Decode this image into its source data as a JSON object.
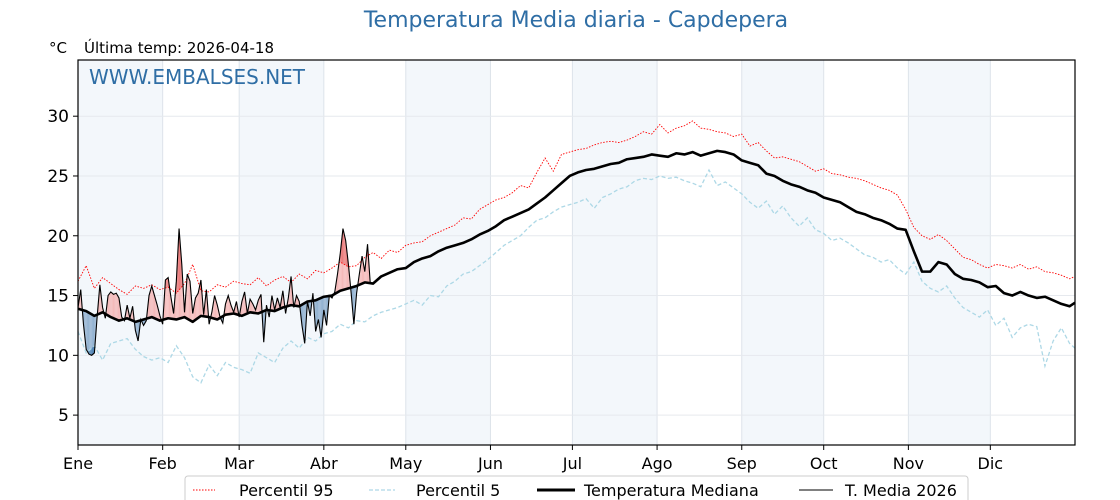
{
  "chart_data": {
    "type": "line",
    "title": "Temperatura Media diaria - Capdepera",
    "subtitle": "Última temp: 2026-04-18",
    "unit_label": "°C",
    "watermark": "WWW.EMBALSES.NET",
    "xlabel": "",
    "ylabel": "°C",
    "xlim_day": [
      1,
      366
    ],
    "ylim": [
      2.5,
      34.7
    ],
    "yticks": [
      5,
      10,
      15,
      20,
      25,
      30
    ],
    "xticks": [
      {
        "label": "Ene",
        "day": 1
      },
      {
        "label": "Feb",
        "day": 32
      },
      {
        "label": "Mar",
        "day": 60
      },
      {
        "label": "Abr",
        "day": 91
      },
      {
        "label": "May",
        "day": 121
      },
      {
        "label": "Jun",
        "day": 152
      },
      {
        "label": "Jul",
        "day": 182
      },
      {
        "label": "Ago",
        "day": 213
      },
      {
        "label": "Sep",
        "day": 244
      },
      {
        "label": "Oct",
        "day": 274
      },
      {
        "label": "Nov",
        "day": 305
      },
      {
        "label": "Dic",
        "day": 335
      }
    ],
    "shaded_months": [
      "Ene",
      "Mar",
      "May",
      "Jul",
      "Sep",
      "Nov"
    ],
    "grid": true,
    "legend_position": "bottom-center",
    "series": [
      {
        "name": "Percentil 95",
        "color": "#ff0000",
        "style": "dotted",
        "x": [
          1,
          4,
          7,
          10,
          13,
          16,
          19,
          22,
          25,
          28,
          31,
          34,
          37,
          40,
          43,
          46,
          49,
          52,
          55,
          58,
          61,
          64,
          67,
          70,
          73,
          76,
          79,
          82,
          85,
          88,
          91,
          94,
          97,
          100,
          103,
          106,
          109,
          112,
          115,
          118,
          121,
          124,
          127,
          130,
          133,
          136,
          139,
          142,
          145,
          148,
          151,
          154,
          157,
          160,
          163,
          166,
          169,
          172,
          175,
          178,
          181,
          184,
          187,
          190,
          193,
          196,
          199,
          202,
          205,
          208,
          211,
          214,
          217,
          220,
          223,
          226,
          229,
          232,
          235,
          238,
          241,
          244,
          247,
          250,
          253,
          256,
          259,
          262,
          265,
          268,
          271,
          274,
          277,
          280,
          283,
          286,
          289,
          292,
          295,
          298,
          301,
          304,
          307,
          310,
          313,
          316,
          319,
          322,
          325,
          328,
          331,
          334,
          337,
          340,
          343,
          346,
          349,
          352,
          355,
          358,
          361,
          364,
          366
        ],
        "values": [
          16.2,
          17.5,
          15.6,
          16.5,
          16.0,
          15.5,
          15.1,
          15.8,
          15.6,
          15.9,
          15.5,
          15.7,
          15.2,
          16.0,
          17.6,
          15.4,
          15.3,
          15.9,
          15.7,
          16.2,
          16.0,
          15.9,
          16.5,
          15.8,
          16.3,
          16.6,
          16.1,
          16.8,
          16.4,
          17.1,
          16.9,
          17.3,
          17.8,
          17.4,
          17.5,
          18.2,
          18.6,
          18.1,
          18.8,
          18.6,
          19.2,
          19.4,
          19.5,
          20.0,
          20.3,
          20.6,
          20.9,
          21.5,
          21.4,
          22.2,
          22.6,
          23.0,
          23.2,
          23.6,
          24.2,
          24.0,
          25.3,
          26.5,
          25.4,
          26.8,
          27.0,
          27.2,
          27.3,
          27.6,
          27.8,
          27.9,
          27.8,
          28.0,
          28.3,
          28.7,
          28.5,
          29.3,
          28.6,
          29.0,
          29.2,
          29.6,
          29.0,
          28.9,
          28.7,
          28.6,
          28.3,
          28.5,
          27.5,
          27.8,
          27.1,
          26.5,
          26.6,
          26.4,
          26.2,
          25.8,
          25.4,
          25.6,
          25.2,
          25.1,
          24.9,
          24.8,
          24.6,
          24.3,
          24.0,
          23.8,
          23.4,
          22.2,
          20.7,
          20.0,
          19.7,
          20.1,
          19.6,
          18.9,
          18.2,
          18.0,
          17.6,
          17.3,
          17.6,
          17.5,
          17.3,
          17.6,
          17.2,
          17.4,
          17.0,
          16.9,
          16.7,
          16.4,
          16.6
        ]
      },
      {
        "name": "Percentil 5",
        "color": "#add8e6",
        "style": "dashed",
        "x": [
          1,
          4,
          7,
          10,
          13,
          16,
          19,
          22,
          25,
          28,
          31,
          34,
          37,
          40,
          43,
          46,
          49,
          52,
          55,
          58,
          61,
          64,
          67,
          70,
          73,
          76,
          79,
          82,
          85,
          88,
          91,
          94,
          97,
          100,
          103,
          106,
          109,
          112,
          115,
          118,
          121,
          124,
          127,
          130,
          133,
          136,
          139,
          142,
          145,
          148,
          151,
          154,
          157,
          160,
          163,
          166,
          169,
          172,
          175,
          178,
          181,
          184,
          187,
          190,
          193,
          196,
          199,
          202,
          205,
          208,
          211,
          214,
          217,
          220,
          223,
          226,
          229,
          232,
          235,
          238,
          241,
          244,
          247,
          250,
          253,
          256,
          259,
          262,
          265,
          268,
          271,
          274,
          277,
          280,
          283,
          286,
          289,
          292,
          295,
          298,
          301,
          304,
          307,
          310,
          313,
          316,
          319,
          322,
          325,
          328,
          331,
          334,
          337,
          340,
          343,
          346,
          349,
          352,
          355,
          358,
          361,
          364,
          366
        ],
        "values": [
          12.0,
          10.2,
          10.8,
          9.6,
          11.0,
          11.2,
          11.4,
          10.5,
          9.9,
          9.6,
          9.8,
          9.4,
          10.8,
          9.8,
          8.2,
          7.7,
          9.2,
          8.3,
          9.4,
          9.0,
          8.8,
          8.5,
          10.2,
          9.8,
          9.4,
          10.6,
          11.2,
          10.6,
          11.5,
          11.2,
          11.8,
          12.0,
          12.6,
          12.3,
          12.9,
          12.8,
          13.3,
          13.6,
          13.8,
          14.0,
          14.3,
          14.6,
          14.2,
          15.0,
          14.9,
          15.8,
          16.2,
          16.8,
          17.0,
          17.5,
          18.0,
          18.6,
          19.2,
          19.6,
          20.0,
          20.7,
          21.3,
          21.5,
          22.0,
          22.4,
          22.6,
          22.8,
          23.1,
          22.3,
          23.2,
          23.5,
          23.9,
          24.1,
          24.6,
          24.8,
          24.7,
          25.0,
          24.8,
          24.9,
          24.6,
          24.4,
          24.1,
          25.5,
          24.2,
          24.5,
          24.0,
          23.5,
          22.8,
          22.3,
          22.9,
          21.8,
          22.5,
          21.5,
          20.8,
          21.5,
          20.5,
          20.2,
          19.6,
          19.8,
          19.4,
          18.9,
          18.4,
          18.2,
          17.8,
          18.0,
          17.3,
          16.8,
          17.8,
          16.2,
          15.6,
          15.3,
          15.8,
          14.8,
          14.0,
          13.6,
          13.2,
          13.8,
          12.5,
          13.1,
          11.5,
          12.3,
          12.6,
          12.4,
          9.1,
          11.2,
          12.3,
          11.0,
          10.6
        ]
      },
      {
        "name": "Temperatura Mediana",
        "color": "#000000",
        "style": "solid-thick",
        "x": [
          1,
          4,
          7,
          10,
          13,
          16,
          19,
          22,
          25,
          28,
          31,
          34,
          37,
          40,
          43,
          46,
          49,
          52,
          55,
          58,
          61,
          64,
          67,
          70,
          73,
          76,
          79,
          82,
          85,
          88,
          91,
          94,
          97,
          100,
          103,
          106,
          109,
          112,
          115,
          118,
          121,
          124,
          127,
          130,
          133,
          136,
          139,
          142,
          145,
          148,
          151,
          154,
          157,
          160,
          163,
          166,
          169,
          172,
          175,
          178,
          181,
          184,
          187,
          190,
          193,
          196,
          199,
          202,
          205,
          208,
          211,
          214,
          217,
          220,
          223,
          226,
          229,
          232,
          235,
          238,
          241,
          244,
          247,
          250,
          253,
          256,
          259,
          262,
          265,
          268,
          271,
          274,
          277,
          280,
          283,
          286,
          289,
          292,
          295,
          298,
          301,
          304,
          307,
          310,
          313,
          316,
          319,
          322,
          325,
          328,
          331,
          334,
          337,
          340,
          343,
          346,
          349,
          352,
          355,
          358,
          361,
          364,
          366
        ],
        "values": [
          13.9,
          13.7,
          13.3,
          13.6,
          13.2,
          12.9,
          13.1,
          12.8,
          13.0,
          13.2,
          12.9,
          13.1,
          13.0,
          13.2,
          12.8,
          13.3,
          13.2,
          13.0,
          13.4,
          13.5,
          13.3,
          13.6,
          13.5,
          13.8,
          13.7,
          14.0,
          14.2,
          14.1,
          14.5,
          14.6,
          14.9,
          15.0,
          15.4,
          15.6,
          15.8,
          16.1,
          16.0,
          16.6,
          16.9,
          17.2,
          17.3,
          17.8,
          18.1,
          18.3,
          18.7,
          19.0,
          19.2,
          19.4,
          19.7,
          20.1,
          20.4,
          20.8,
          21.3,
          21.6,
          21.9,
          22.2,
          22.7,
          23.2,
          23.8,
          24.4,
          25.0,
          25.3,
          25.5,
          25.6,
          25.8,
          26.0,
          26.1,
          26.4,
          26.5,
          26.6,
          26.8,
          26.7,
          26.6,
          26.9,
          26.8,
          27.0,
          26.7,
          26.9,
          27.1,
          27.0,
          26.8,
          26.3,
          26.1,
          25.9,
          25.2,
          25.0,
          24.6,
          24.3,
          24.1,
          23.8,
          23.6,
          23.2,
          23.0,
          22.8,
          22.4,
          22.0,
          21.8,
          21.5,
          21.3,
          21.0,
          20.6,
          20.5,
          18.7,
          17.0,
          17.0,
          17.8,
          17.6,
          16.8,
          16.4,
          16.3,
          16.1,
          15.7,
          15.8,
          15.2,
          15.0,
          15.3,
          15.0,
          14.8,
          14.9,
          14.6,
          14.3,
          14.1,
          14.4
        ]
      },
      {
        "name": "T. Media 2026",
        "color": "#000000",
        "style": "solid-thin",
        "x": [
          1,
          2,
          3,
          4,
          5,
          6,
          7,
          8,
          9,
          10,
          11,
          12,
          13,
          14,
          15,
          16,
          17,
          18,
          19,
          20,
          21,
          22,
          23,
          24,
          25,
          26,
          27,
          28,
          29,
          30,
          31,
          32,
          33,
          34,
          35,
          36,
          37,
          38,
          39,
          40,
          41,
          42,
          43,
          44,
          45,
          46,
          47,
          48,
          49,
          50,
          51,
          52,
          53,
          54,
          55,
          56,
          57,
          58,
          59,
          60,
          61,
          62,
          63,
          64,
          65,
          66,
          67,
          68,
          69,
          70,
          71,
          72,
          73,
          74,
          75,
          76,
          77,
          78,
          79,
          80,
          81,
          82,
          83,
          84,
          85,
          86,
          87,
          88,
          89,
          90,
          91,
          92,
          93,
          94,
          95,
          96,
          97,
          98,
          99,
          100,
          101,
          102,
          103,
          104,
          105,
          106,
          107,
          108
        ],
        "values": [
          14.0,
          15.5,
          12.6,
          10.5,
          10.1,
          10.0,
          10.2,
          13.2,
          15.9,
          14.0,
          13.1,
          15.0,
          15.3,
          15.1,
          15.2,
          14.8,
          13.2,
          12.9,
          14.2,
          13.1,
          14.1,
          12.1,
          11.2,
          13.0,
          12.5,
          12.9,
          15.0,
          15.8,
          15.0,
          14.2,
          13.3,
          12.6,
          16.3,
          16.5,
          14.9,
          13.5,
          16.2,
          20.6,
          17.6,
          13.6,
          16.8,
          16.2,
          13.5,
          14.8,
          15.2,
          16.3,
          13.4,
          15.5,
          12.6,
          13.6,
          15.0,
          14.2,
          13.2,
          12.7,
          14.3,
          15.0,
          14.2,
          13.6,
          14.5,
          13.2,
          14.5,
          15.3,
          13.5,
          14.7,
          14.3,
          13.8,
          14.6,
          15.1,
          11.1,
          14.2,
          13.2,
          15.0,
          13.8,
          14.8,
          14.0,
          15.4,
          13.5,
          14.8,
          16.6,
          14.0,
          15.0,
          14.5,
          12.5,
          11.0,
          14.5,
          13.3,
          15.2,
          12.0,
          13.0,
          11.5,
          13.8,
          12.5,
          15.0,
          14.8,
          15.3,
          16.8,
          18.5,
          20.6,
          19.6,
          17.6,
          15.2,
          12.6,
          15.2,
          16.8,
          18.3,
          17.0,
          19.3,
          16.0
        ]
      }
    ],
    "fill_colors": {
      "above_median": "#f4b4b4",
      "above_p95": "#ea7777",
      "below_median": "#8aaccd",
      "below_p5": "#4a7fb0"
    }
  }
}
